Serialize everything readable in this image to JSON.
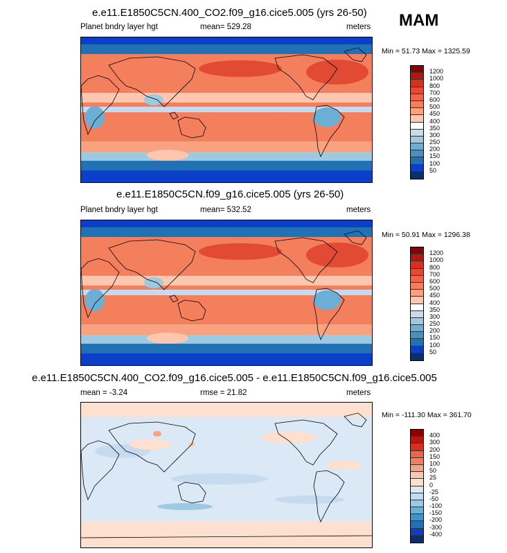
{
  "season": "MAM",
  "panels": [
    {
      "title": "e.e11.E1850C5CN.400_CO2.f09_g16.cice5.005 (yrs 26-50)",
      "left_label": "Planet bndry layer hgt",
      "center_label": "mean= 529.28",
      "right_label": "meters",
      "minmax": "Min =  51.73 Max = 1325.59",
      "colorbar": {
        "labels": [
          "1200",
          "1000",
          "800",
          "700",
          "600",
          "500",
          "450",
          "400",
          "350",
          "300",
          "250",
          "200",
          "150",
          "100",
          "50"
        ],
        "colors": [
          "#8b0000",
          "#b5170f",
          "#d7301f",
          "#e34a33",
          "#ef6548",
          "#f47f5c",
          "#f8a27f",
          "#fcc7ae",
          "#ffffff",
          "#c6dbef",
          "#9ecae1",
          "#6baed6",
          "#4292c6",
          "#2171b5",
          "#0b3fc8",
          "#08306b"
        ]
      }
    },
    {
      "title": "e.e11.E1850C5CN.f09_g16.cice5.005 (yrs 26-50)",
      "left_label": "Planet bndry layer hgt",
      "center_label": "mean= 532.52",
      "right_label": "meters",
      "minmax": "Min =  50.91 Max = 1296.38",
      "colorbar": {
        "labels": [
          "1200",
          "1000",
          "800",
          "700",
          "600",
          "500",
          "450",
          "400",
          "350",
          "300",
          "250",
          "200",
          "150",
          "100",
          "50"
        ],
        "colors": [
          "#8b0000",
          "#b5170f",
          "#d7301f",
          "#e34a33",
          "#ef6548",
          "#f47f5c",
          "#f8a27f",
          "#fcc7ae",
          "#ffffff",
          "#c6dbef",
          "#9ecae1",
          "#6baed6",
          "#4292c6",
          "#2171b5",
          "#0b3fc8",
          "#08306b"
        ]
      }
    },
    {
      "title": "e.e11.E1850C5CN.400_CO2.f09_g16.cice5.005 - e.e11.E1850C5CN.f09_g16.cice5.005",
      "left_label": "mean =  -3.24",
      "center_label": "rmse =  21.82",
      "right_label": "meters",
      "minmax": "Min = -111.30 Max = 361.70",
      "colorbar": {
        "labels": [
          "400",
          "300",
          "200",
          "150",
          "100",
          "50",
          "25",
          "0",
          "-25",
          "-50",
          "-100",
          "-150",
          "-200",
          "-300",
          "-400"
        ],
        "colors": [
          "#8b0000",
          "#b5170f",
          "#d7301f",
          "#ef6548",
          "#f47f5c",
          "#f8a27f",
          "#fcc7ae",
          "#fde0d0",
          "#dbe9f6",
          "#c6dbef",
          "#9ecae1",
          "#6baed6",
          "#4292c6",
          "#2171b5",
          "#0b3fc8",
          "#08306b"
        ]
      }
    }
  ]
}
